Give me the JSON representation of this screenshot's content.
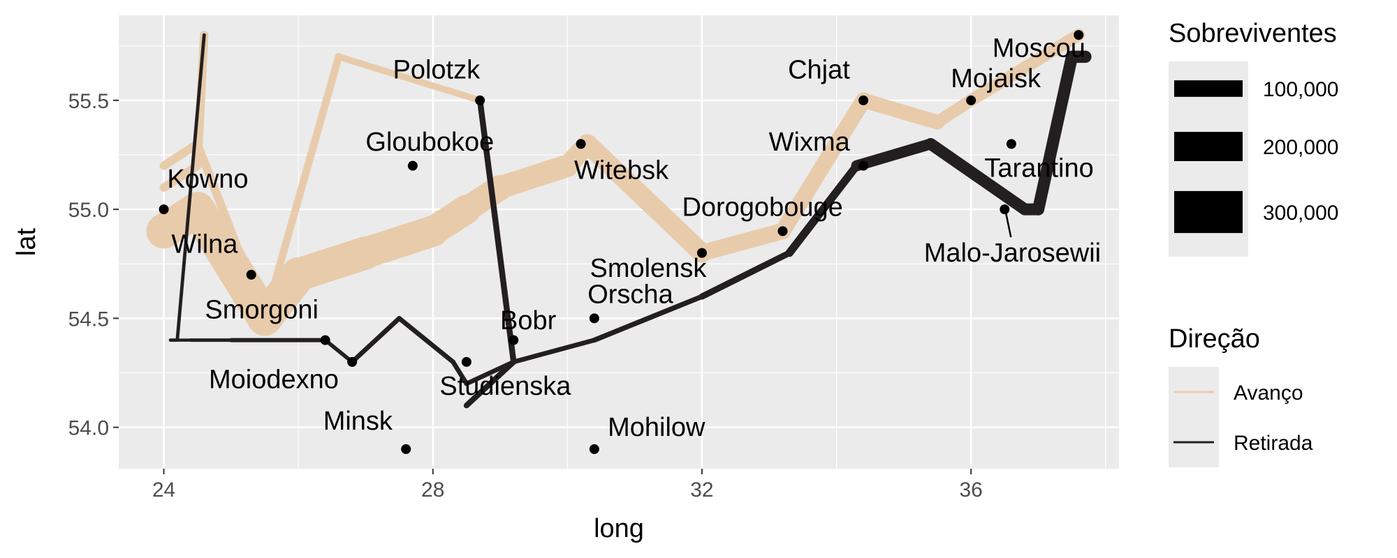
{
  "chart_data": {
    "type": "line",
    "xlabel": "long",
    "ylabel": "lat",
    "xlim": [
      23.33,
      38.2
    ],
    "ylim": [
      53.81,
      55.89
    ],
    "x_ticks": [
      24,
      28,
      32,
      36
    ],
    "x_tick_labels": [
      "24",
      "28",
      "32",
      "36"
    ],
    "y_ticks": [
      54.0,
      54.5,
      55.0,
      55.5
    ],
    "y_tick_labels": [
      "54.0",
      "54.5",
      "55.0",
      "55.5"
    ],
    "grid": true,
    "colors": {
      "panel_bg": "#ebebeb",
      "grid_major": "#ffffff",
      "advance": "#e8cbab",
      "retreat": "#231f20",
      "city_point": "#000000",
      "legend_key_bg": "#ebebeb",
      "size_key": "#000000"
    },
    "series": [
      {
        "name": "Avanço",
        "points": [
          {
            "x": 24.0,
            "y": 54.9,
            "survivors": 340000
          },
          {
            "x": 24.5,
            "y": 55.0,
            "survivors": 340000
          },
          {
            "x": 25.5,
            "y": 54.5,
            "survivors": 340000
          },
          {
            "x": 26.0,
            "y": 54.7,
            "survivors": 320000
          },
          {
            "x": 27.0,
            "y": 54.8,
            "survivors": 300000
          },
          {
            "x": 28.0,
            "y": 54.9,
            "survivors": 280000
          },
          {
            "x": 28.5,
            "y": 55.0,
            "survivors": 240000
          },
          {
            "x": 29.0,
            "y": 55.1,
            "survivors": 210000
          },
          {
            "x": 30.0,
            "y": 55.2,
            "survivors": 180000
          },
          {
            "x": 30.3,
            "y": 55.3,
            "survivors": 175000
          },
          {
            "x": 32.0,
            "y": 54.8,
            "survivors": 145000
          },
          {
            "x": 33.2,
            "y": 54.9,
            "survivors": 140000
          },
          {
            "x": 34.4,
            "y": 55.5,
            "survivors": 127100
          },
          {
            "x": 35.5,
            "y": 55.4,
            "survivors": 100000
          },
          {
            "x": 36.0,
            "y": 55.5,
            "survivors": 100000
          },
          {
            "x": 37.6,
            "y": 55.8,
            "survivors": 100000
          }
        ]
      },
      {
        "name": "Avanço",
        "points": [
          {
            "x": 24.0,
            "y": 55.1,
            "survivors": 60000
          },
          {
            "x": 24.5,
            "y": 55.2,
            "survivors": 60000
          },
          {
            "x": 24.6,
            "y": 55.8,
            "survivors": 22000
          }
        ]
      },
      {
        "name": "Avanço",
        "points": [
          {
            "x": 24.0,
            "y": 55.2,
            "survivors": 60000
          },
          {
            "x": 24.5,
            "y": 55.3,
            "survivors": 60000
          },
          {
            "x": 25.5,
            "y": 54.5,
            "survivors": 50000
          },
          {
            "x": 26.6,
            "y": 55.7,
            "survivors": 40000
          },
          {
            "x": 28.7,
            "y": 55.5,
            "survivors": 33000
          }
        ]
      },
      {
        "name": "Retirada",
        "points": [
          {
            "x": 37.7,
            "y": 55.7,
            "survivors": 100000
          },
          {
            "x": 37.5,
            "y": 55.7,
            "survivors": 98000
          },
          {
            "x": 37.0,
            "y": 55.0,
            "survivors": 97000
          },
          {
            "x": 36.8,
            "y": 55.0,
            "survivors": 96000
          },
          {
            "x": 35.4,
            "y": 55.3,
            "survivors": 87000
          },
          {
            "x": 34.3,
            "y": 55.2,
            "survivors": 55000
          },
          {
            "x": 33.3,
            "y": 54.8,
            "survivors": 37000
          },
          {
            "x": 32.0,
            "y": 54.6,
            "survivors": 24000
          },
          {
            "x": 30.4,
            "y": 54.4,
            "survivors": 20000
          },
          {
            "x": 29.2,
            "y": 54.3,
            "survivors": 20000
          },
          {
            "x": 28.5,
            "y": 54.2,
            "survivors": 20000
          },
          {
            "x": 28.3,
            "y": 54.3,
            "survivors": 20000
          },
          {
            "x": 27.5,
            "y": 54.5,
            "survivors": 20000
          },
          {
            "x": 26.8,
            "y": 54.3,
            "survivors": 12000
          },
          {
            "x": 26.4,
            "y": 54.4,
            "survivors": 14000
          },
          {
            "x": 25.0,
            "y": 54.4,
            "survivors": 8000
          },
          {
            "x": 24.4,
            "y": 54.4,
            "survivors": 4000
          },
          {
            "x": 24.2,
            "y": 54.4,
            "survivors": 4000
          },
          {
            "x": 24.1,
            "y": 54.4,
            "survivors": 4000
          }
        ]
      },
      {
        "name": "Retirada",
        "points": [
          {
            "x": 28.7,
            "y": 55.5,
            "survivors": 33000
          },
          {
            "x": 29.2,
            "y": 54.3,
            "survivors": 30000
          },
          {
            "x": 28.5,
            "y": 54.1,
            "survivors": 28000
          }
        ]
      },
      {
        "name": "Retirada",
        "points": [
          {
            "x": 24.6,
            "y": 55.8,
            "survivors": 6000
          },
          {
            "x": 24.2,
            "y": 54.4,
            "survivors": 6000
          },
          {
            "x": 24.1,
            "y": 54.4,
            "survivors": 6000
          }
        ]
      }
    ],
    "cities": [
      {
        "name": "Kowno",
        "x": 24.0,
        "y": 55.0,
        "label_anchor": "start",
        "lx": 24.05,
        "ly": 55.1
      },
      {
        "name": "Wilna",
        "x": 25.3,
        "y": 54.7,
        "label_anchor": "end",
        "lx": 25.1,
        "ly": 54.8
      },
      {
        "name": "Smorgoni",
        "x": 26.4,
        "y": 54.4,
        "label_anchor": "end",
        "lx": 26.3,
        "ly": 54.5
      },
      {
        "name": "Moiodexno",
        "x": 26.8,
        "y": 54.3,
        "label_anchor": "end",
        "lx": 26.6,
        "ly": 54.18
      },
      {
        "name": "Gloubokoe",
        "x": 27.7,
        "y": 55.2,
        "label_anchor": "start",
        "lx": 27.0,
        "ly": 55.27
      },
      {
        "name": "Minsk",
        "x": 27.6,
        "y": 53.9,
        "label_anchor": "end",
        "lx": 27.4,
        "ly": 53.99
      },
      {
        "name": "Studienska",
        "x": 28.5,
        "y": 54.3,
        "label_anchor": "start",
        "lx": 28.1,
        "ly": 54.15
      },
      {
        "name": "Polotzk",
        "x": 28.7,
        "y": 55.5,
        "label_anchor": "end",
        "lx": 28.7,
        "ly": 55.6
      },
      {
        "name": "Bobr",
        "x": 29.2,
        "y": 54.4,
        "label_anchor": "start",
        "lx": 29.0,
        "ly": 54.45
      },
      {
        "name": "Witebsk",
        "x": 30.2,
        "y": 55.3,
        "label_anchor": "start",
        "lx": 30.1,
        "ly": 55.14
      },
      {
        "name": "Orscha",
        "x": 30.4,
        "y": 54.5,
        "label_anchor": "start",
        "lx": 30.3,
        "ly": 54.57
      },
      {
        "name": "Mohilow",
        "x": 30.4,
        "y": 53.9,
        "label_anchor": "start",
        "lx": 30.6,
        "ly": 53.96
      },
      {
        "name": "Smolensk",
        "x": 32.0,
        "y": 54.8,
        "label_anchor": "middle",
        "lx": 31.2,
        "ly": 54.69
      },
      {
        "name": "Dorogobouge",
        "x": 33.2,
        "y": 54.9,
        "label_anchor": "middle",
        "lx": 32.9,
        "ly": 54.97
      },
      {
        "name": "Wixma",
        "x": 34.4,
        "y": 55.2,
        "label_anchor": "end",
        "lx": 34.2,
        "ly": 55.27
      },
      {
        "name": "Chjat",
        "x": 34.4,
        "y": 55.5,
        "label_anchor": "end",
        "lx": 34.2,
        "ly": 55.6
      },
      {
        "name": "Mojaisk",
        "x": 36.0,
        "y": 55.5,
        "label_anchor": "start",
        "lx": 35.7,
        "ly": 55.56
      },
      {
        "name": "Moscou",
        "x": 37.6,
        "y": 55.8,
        "label_anchor": "end",
        "lx": 37.7,
        "ly": 55.7
      },
      {
        "name": "Tarantino",
        "x": 36.6,
        "y": 55.3,
        "label_anchor": "start",
        "lx": 36.2,
        "ly": 55.15
      },
      {
        "name": "Malo-Jarosewii",
        "x": 36.5,
        "y": 55.0,
        "label_anchor": "start",
        "lx": 35.3,
        "ly": 54.76
      }
    ],
    "legend_size": {
      "title": "Sobreviventes",
      "items": [
        {
          "label": "100,000",
          "value": 100000
        },
        {
          "label": "200,000",
          "value": 200000
        },
        {
          "label": "300,000",
          "value": 300000
        }
      ]
    },
    "legend_color": {
      "title": "Direção",
      "items": [
        {
          "label": "Avanço",
          "color": "#e8cbab"
        },
        {
          "label": "Retirada",
          "color": "#231f20"
        }
      ]
    }
  }
}
